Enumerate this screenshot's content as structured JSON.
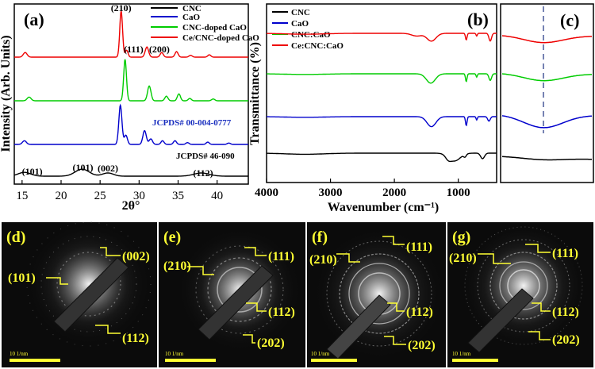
{
  "chart_data": [
    {
      "id": "a",
      "type": "line",
      "panel_label": "(a)",
      "xlabel": "2θ°",
      "ylabel": "Intensity (Arb. Units)",
      "xlim": [
        14,
        44
      ],
      "xticks": [
        15,
        20,
        25,
        30,
        35,
        40
      ],
      "legend": [
        {
          "name": "CNC",
          "color": "#000000"
        },
        {
          "name": "CaO",
          "color": "#0000cc"
        },
        {
          "name": "CNC-doped CaO",
          "color": "#00cc00"
        },
        {
          "name": "Ce/CNC-doped CaO",
          "color": "#ee0000"
        }
      ],
      "series": [
        {
          "name": "CNC",
          "color": "#000000",
          "baseline": 0,
          "peaks": [
            [
              15.3,
              0.12,
              0.8
            ],
            [
              22.7,
              0.22,
              0.9
            ],
            [
              26.0,
              0.1,
              0.7
            ],
            [
              38.0,
              0.1,
              1.0
            ]
          ]
        },
        {
          "name": "CaO",
          "color": "#0000cc",
          "baseline": 1,
          "peaks": [
            [
              15.3,
              0.08,
              0.25
            ],
            [
              27.6,
              0.85,
              0.2
            ],
            [
              28.3,
              0.2,
              0.2
            ],
            [
              30.7,
              0.3,
              0.22
            ],
            [
              31.5,
              0.12,
              0.22
            ],
            [
              33.0,
              0.08,
              0.2
            ],
            [
              34.6,
              0.08,
              0.2
            ],
            [
              36.2,
              0.04,
              0.2
            ],
            [
              38.8,
              0.05,
              0.2
            ],
            [
              41.5,
              0.03,
              0.2
            ]
          ]
        },
        {
          "name": "CNC-doped CaO",
          "color": "#00cc00",
          "baseline": 2,
          "peaks": [
            [
              15.9,
              0.08,
              0.25
            ],
            [
              28.2,
              0.9,
              0.18
            ],
            [
              31.3,
              0.32,
              0.22
            ],
            [
              33.5,
              0.1,
              0.2
            ],
            [
              35.1,
              0.15,
              0.2
            ],
            [
              36.5,
              0.05,
              0.2
            ],
            [
              39.5,
              0.04,
              0.2
            ]
          ]
        },
        {
          "name": "Ce/CNC-doped CaO",
          "color": "#ee0000",
          "baseline": 3,
          "peaks": [
            [
              15.4,
              0.1,
              0.25
            ],
            [
              27.7,
              1.0,
              0.18
            ],
            [
              28.4,
              0.15,
              0.18
            ],
            [
              31.0,
              0.22,
              0.22
            ],
            [
              32.9,
              0.1,
              0.2
            ],
            [
              34.8,
              0.12,
              0.2
            ],
            [
              36.6,
              0.04,
              0.2
            ],
            [
              39.0,
              0.05,
              0.2
            ]
          ]
        }
      ],
      "peak_labels": [
        {
          "text": "(210)",
          "x": 27.7,
          "series": "Ce/CNC-doped CaO"
        },
        {
          "text": "(111)",
          "x": 29.3,
          "series": "Ce/CNC-doped CaO"
        },
        {
          "text": "(200)",
          "x": 32.6,
          "series": "Ce/CNC-doped CaO"
        },
        {
          "text": "(101)",
          "x": 16.3,
          "series": "CNC"
        },
        {
          "text": "(101)",
          "x": 22.8,
          "series": "CNC"
        },
        {
          "text": "(002)",
          "x": 26.0,
          "series": "CNC"
        },
        {
          "text": "(112)",
          "x": 38.2,
          "series": "CNC"
        }
      ],
      "annotations": [
        "JCPDS# 00-004-0777",
        "JCPDS# 46-090"
      ]
    },
    {
      "id": "b",
      "type": "line",
      "panel_label": "(b)",
      "xlabel": "Wavenumber (cm⁻¹)",
      "ylabel": "Transmittance (%)",
      "xlim": [
        4000,
        400
      ],
      "xticks": [
        4000,
        3000,
        2000,
        1000
      ],
      "legend": [
        {
          "name": "CNC",
          "color": "#000000"
        },
        {
          "name": "CaO",
          "color": "#0000cc"
        },
        {
          "name": "CNC:CaO",
          "color": "#00cc00"
        },
        {
          "name": "Ce:CNC:CaO",
          "color": "#ee0000"
        }
      ],
      "series": [
        {
          "name": "CNC",
          "color": "#000000",
          "baseline": 0,
          "bands": [
            [
              3400,
              -0.05,
              300
            ],
            [
              1060,
              -0.35,
              90
            ],
            [
              1160,
              -0.15,
              40
            ],
            [
              895,
              -0.12,
              20
            ],
            [
              620,
              -0.25,
              30
            ]
          ]
        },
        {
          "name": "CaO",
          "color": "#0000cc",
          "baseline": 1,
          "bands": [
            [
              3400,
              -0.03,
              300
            ],
            [
              1420,
              -0.45,
              70
            ],
            [
              875,
              -0.4,
              12
            ],
            [
              712,
              -0.15,
              10
            ],
            [
              520,
              -0.2,
              20
            ]
          ]
        },
        {
          "name": "CNC:CaO",
          "color": "#00cc00",
          "baseline": 2,
          "bands": [
            [
              3400,
              -0.03,
              300
            ],
            [
              1430,
              -0.42,
              70
            ],
            [
              875,
              -0.35,
              12
            ],
            [
              712,
              -0.15,
              10
            ],
            [
              500,
              -0.3,
              20
            ]
          ]
        },
        {
          "name": "Ce:CNC:CaO",
          "color": "#ee0000",
          "baseline": 3,
          "bands": [
            [
              3400,
              -0.04,
              300
            ],
            [
              1650,
              -0.12,
              80
            ],
            [
              1420,
              -0.35,
              70
            ],
            [
              875,
              -0.3,
              12
            ],
            [
              712,
              -0.12,
              10
            ],
            [
              500,
              -0.35,
              20
            ]
          ]
        }
      ]
    },
    {
      "id": "c",
      "type": "line",
      "panel_label": "(c)",
      "note": "enlarged view around the marked band",
      "series": [
        {
          "name": "Ce:CNC:CaO",
          "color": "#ee0000",
          "depth": 0.5
        },
        {
          "name": "CNC:CaO",
          "color": "#00cc00",
          "depth": 0.5
        },
        {
          "name": "CaO",
          "color": "#0000cc",
          "depth": 0.9
        },
        {
          "name": "CNC",
          "color": "#000000",
          "depth": 0.15
        }
      ]
    }
  ],
  "saed": [
    {
      "label": "(d)",
      "indices": [
        "(002)",
        "(101)",
        "(112)"
      ],
      "scale": "10 1/nm"
    },
    {
      "label": "(e)",
      "indices": [
        "(210)",
        "(111)",
        "(112)",
        "(202)"
      ],
      "scale": "10 1/nm"
    },
    {
      "label": "(f)",
      "indices": [
        "(210)",
        "(111)",
        "(112)",
        "(202)"
      ],
      "scale": "10 1/nm"
    },
    {
      "label": "(g)",
      "indices": [
        "(210)",
        "(111)",
        "(112)",
        "(202)"
      ],
      "scale": "10 1/nm"
    }
  ]
}
